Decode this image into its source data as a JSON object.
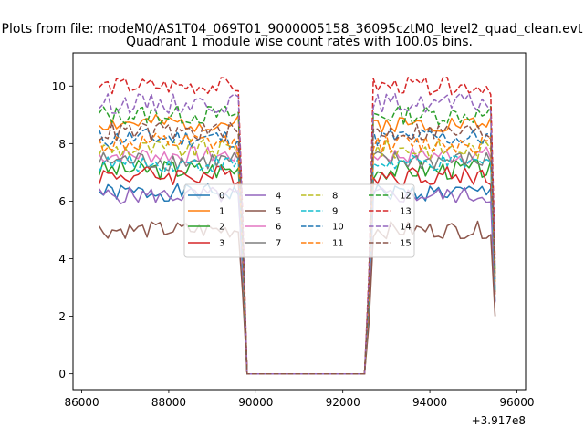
{
  "chart_data": {
    "type": "line",
    "suptitle": "Plots from file: modeM0/AS1T04_069T01_9000005158_36095cztM0_level2_quad_clean.evt",
    "title": "Quadrant 1 module wise count rates with 100.0s bins.",
    "xlabel": "",
    "ylabel": "",
    "offset_label": "+3.917e8",
    "xlim": [
      85800,
      96200
    ],
    "ylim": [
      -0.55,
      11.15
    ],
    "x_ticks": [
      86000,
      88000,
      90000,
      92000,
      94000,
      96000
    ],
    "y_ticks": [
      0,
      2,
      4,
      6,
      8,
      10
    ],
    "x_tick_labels": [
      "86000",
      "88000",
      "90000",
      "92000",
      "94000",
      "96000"
    ],
    "y_tick_labels": [
      "0",
      "2",
      "4",
      "6",
      "8",
      "10"
    ],
    "legend_position": "center",
    "gap": {
      "x_start": 89700,
      "x_end": 92600,
      "low": 0.0,
      "from_x": 86400,
      "to_x": 95550
    },
    "series": [
      {
        "name": "0",
        "color": "#1f77b4",
        "dash": "solid",
        "mean": 6.3,
        "spread": 0.3,
        "seed": 1
      },
      {
        "name": "1",
        "color": "#ff7f0e",
        "dash": "solid",
        "mean": 8.7,
        "spread": 0.3,
        "seed": 2
      },
      {
        "name": "2",
        "color": "#2ca02c",
        "dash": "solid",
        "mean": 7.1,
        "spread": 0.35,
        "seed": 3
      },
      {
        "name": "3",
        "color": "#d62728",
        "dash": "solid",
        "mean": 6.9,
        "spread": 0.35,
        "seed": 4
      },
      {
        "name": "4",
        "color": "#9467bd",
        "dash": "solid",
        "mean": 6.2,
        "spread": 0.3,
        "seed": 5
      },
      {
        "name": "5",
        "color": "#8c564b",
        "dash": "solid",
        "mean": 5.0,
        "spread": 0.3,
        "seed": 6
      },
      {
        "name": "6",
        "color": "#e377c2",
        "dash": "solid",
        "mean": 7.6,
        "spread": 0.3,
        "seed": 7
      },
      {
        "name": "7",
        "color": "#7f7f7f",
        "dash": "solid",
        "mean": 7.4,
        "spread": 0.35,
        "seed": 8
      },
      {
        "name": "8",
        "color": "#bcbd22",
        "dash": "dashed",
        "mean": 7.8,
        "spread": 0.35,
        "seed": 9
      },
      {
        "name": "9",
        "color": "#17becf",
        "dash": "dashed",
        "mean": 7.3,
        "spread": 0.3,
        "seed": 10
      },
      {
        "name": "10",
        "color": "#1f77b4",
        "dash": "dashed",
        "mean": 8.2,
        "spread": 0.35,
        "seed": 11
      },
      {
        "name": "11",
        "color": "#ff7f0e",
        "dash": "dashed",
        "mean": 8.0,
        "spread": 0.35,
        "seed": 12
      },
      {
        "name": "12",
        "color": "#2ca02c",
        "dash": "dashed",
        "mean": 9.0,
        "spread": 0.35,
        "seed": 13
      },
      {
        "name": "13",
        "color": "#d62728",
        "dash": "dashed",
        "mean": 10.0,
        "spread": 0.3,
        "seed": 14
      },
      {
        "name": "14",
        "color": "#9467bd",
        "dash": "dashed",
        "mean": 9.4,
        "spread": 0.35,
        "seed": 15
      },
      {
        "name": "15",
        "color": "#8c564b",
        "dash": "dashed",
        "mean": 8.4,
        "spread": 0.35,
        "seed": 16
      }
    ]
  }
}
